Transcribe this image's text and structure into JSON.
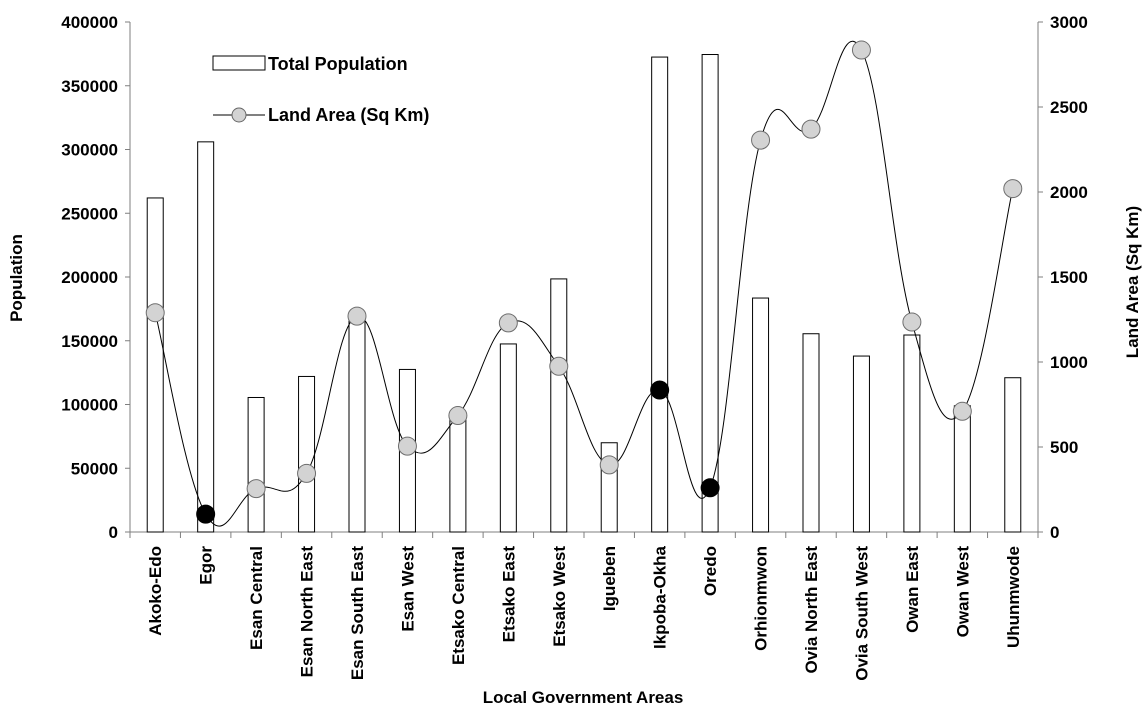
{
  "chart_data": {
    "type": "bar+line",
    "xlabel": "Local Government Areas",
    "ylabel": "Population",
    "y2label": "Land Area (Sq Km)",
    "ylim": [
      0,
      400000
    ],
    "y2lim": [
      0,
      3000
    ],
    "y_ticks": [
      "0",
      "50000",
      "100000",
      "150000",
      "200000",
      "250000",
      "300000",
      "350000",
      "400000"
    ],
    "y2_ticks": [
      "0",
      "500",
      "1000",
      "1500",
      "2000",
      "2500",
      "3000"
    ],
    "grid": false,
    "legend_position": "top-left",
    "categories": [
      "Akoko-Edo",
      "Egor",
      "Esan Central",
      "Esan North East",
      "Esan South East",
      "Esan West",
      "Etsako Central",
      "Etsako East",
      "Etsako West",
      "Igueben",
      "Ikpoba-Okha",
      "Oredo",
      "Orhionmwon",
      "Ovia North East",
      "Ovia South West",
      "Owan East",
      "Owan West",
      "Uhunmwode"
    ],
    "series": [
      {
        "name": "Total Population",
        "type": "bar",
        "axis": "left",
        "values": [
          262000,
          306000,
          105500,
          122000,
          167000,
          127500,
          94000,
          147500,
          198500,
          70000,
          372500,
          374500,
          183500,
          155500,
          138000,
          154500,
          99000,
          121000
        ]
      },
      {
        "name": "Land Area (Sq Km)",
        "type": "line",
        "axis": "right",
        "values": [
          1290,
          105,
          255,
          345,
          1270,
          505,
          685,
          1230,
          975,
          395,
          835,
          260,
          2305,
          2370,
          2835,
          1235,
          710,
          2020
        ],
        "highlighted_points": [
          "Egor",
          "Ikpoba-Okha",
          "Oredo"
        ]
      }
    ]
  },
  "colors": {
    "bar_fill": "#ffffff",
    "bar_stroke": "#000000",
    "line": "#000000",
    "marker_fill": "#d3d3d3",
    "marker_highlight": "#000000"
  }
}
